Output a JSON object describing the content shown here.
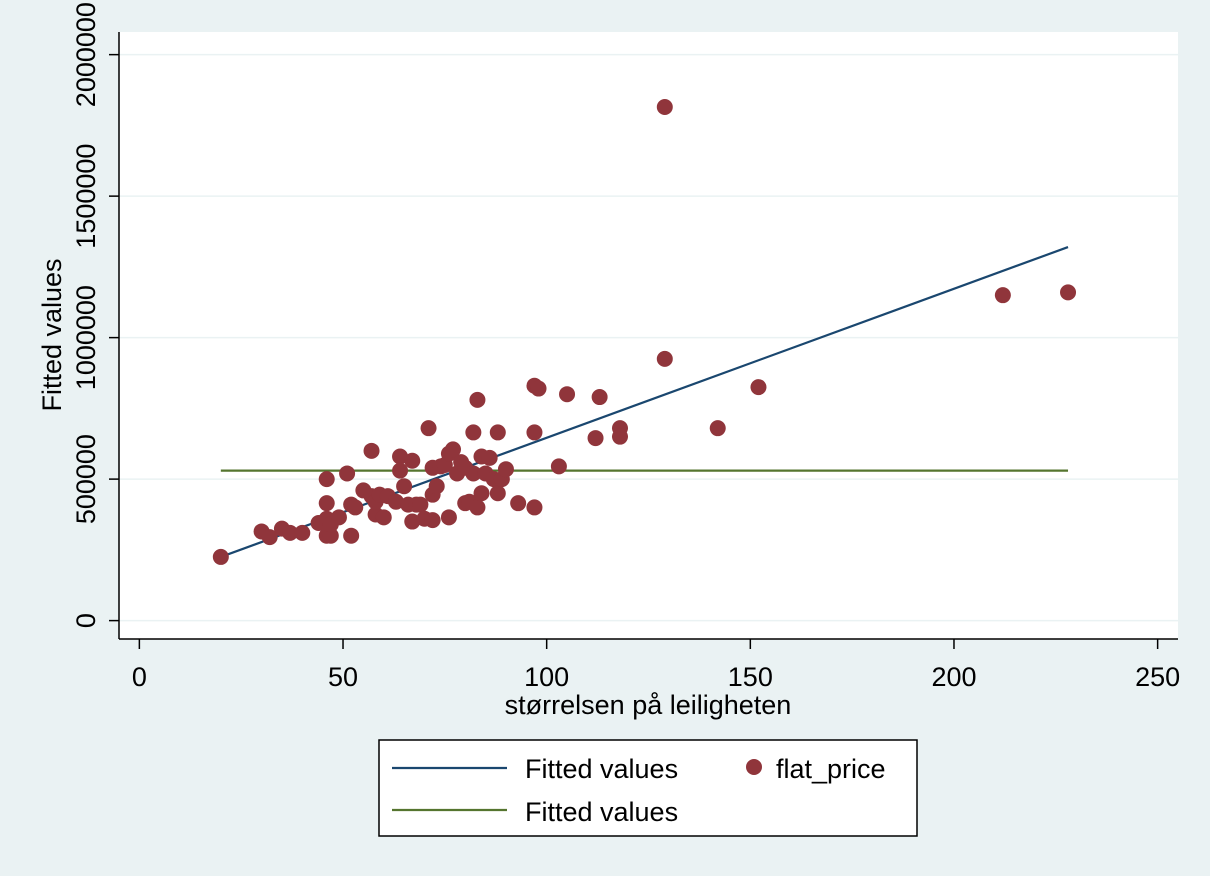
{
  "chart_data": {
    "type": "scatter",
    "title": "",
    "xlabel": "størrelsen på leiligheten",
    "ylabel": "Fitted values",
    "xlim": [
      -5,
      255
    ],
    "ylim": [
      -65000,
      2080000
    ],
    "x_ticks": [
      0,
      50,
      100,
      150,
      200,
      250
    ],
    "y_ticks": [
      0,
      500000,
      1000000,
      1500000,
      2000000
    ],
    "x_tick_labels": [
      "0",
      "50",
      "100",
      "150",
      "200",
      "250"
    ],
    "y_tick_labels": [
      "0",
      "500000",
      "1000000",
      "1500000",
      "2000000"
    ],
    "grid": "horizontal",
    "legend_position": "bottom",
    "colors": {
      "fit_line": "#1a476f",
      "mean_line": "#55752f",
      "points": "#90353b",
      "grid": "#eaf2f3",
      "plot_bg": "#ffffff",
      "page_bg": "#eaf2f3"
    },
    "series": [
      {
        "name": "Fitted values",
        "type": "line",
        "color": "#1a476f",
        "points": [
          [
            20,
            225000
          ],
          [
            228,
            1320000
          ]
        ]
      },
      {
        "name": "flat_price",
        "type": "scatter",
        "color": "#90353b",
        "points": [
          [
            20,
            225000
          ],
          [
            30,
            315000
          ],
          [
            32,
            295000
          ],
          [
            35,
            325000
          ],
          [
            37,
            310000
          ],
          [
            40,
            310000
          ],
          [
            44,
            345000
          ],
          [
            46,
            500000
          ],
          [
            46,
            415000
          ],
          [
            46,
            360000
          ],
          [
            46,
            300000
          ],
          [
            47,
            300000
          ],
          [
            47,
            340000
          ],
          [
            49,
            365000
          ],
          [
            51,
            520000
          ],
          [
            52,
            410000
          ],
          [
            52,
            300000
          ],
          [
            53,
            400000
          ],
          [
            55,
            460000
          ],
          [
            57,
            600000
          ],
          [
            57,
            440000
          ],
          [
            58,
            375000
          ],
          [
            58,
            420000
          ],
          [
            59,
            445000
          ],
          [
            60,
            365000
          ],
          [
            61,
            440000
          ],
          [
            63,
            420000
          ],
          [
            64,
            580000
          ],
          [
            64,
            530000
          ],
          [
            65,
            475000
          ],
          [
            66,
            410000
          ],
          [
            67,
            565000
          ],
          [
            67,
            350000
          ],
          [
            68,
            410000
          ],
          [
            69,
            410000
          ],
          [
            70,
            360000
          ],
          [
            71,
            680000
          ],
          [
            72,
            445000
          ],
          [
            72,
            355000
          ],
          [
            72,
            540000
          ],
          [
            73,
            475000
          ],
          [
            74,
            545000
          ],
          [
            75,
            550000
          ],
          [
            76,
            590000
          ],
          [
            76,
            365000
          ],
          [
            77,
            605000
          ],
          [
            78,
            520000
          ],
          [
            79,
            560000
          ],
          [
            80,
            540000
          ],
          [
            80,
            415000
          ],
          [
            81,
            420000
          ],
          [
            82,
            665000
          ],
          [
            82,
            520000
          ],
          [
            83,
            780000
          ],
          [
            83,
            400000
          ],
          [
            84,
            580000
          ],
          [
            84,
            450000
          ],
          [
            85,
            520000
          ],
          [
            86,
            575000
          ],
          [
            87,
            500000
          ],
          [
            88,
            665000
          ],
          [
            88,
            450000
          ],
          [
            89,
            500000
          ],
          [
            90,
            535000
          ],
          [
            93,
            415000
          ],
          [
            97,
            830000
          ],
          [
            97,
            665000
          ],
          [
            97,
            400000
          ],
          [
            98,
            820000
          ],
          [
            103,
            545000
          ],
          [
            105,
            800000
          ],
          [
            112,
            645000
          ],
          [
            113,
            790000
          ],
          [
            118,
            680000
          ],
          [
            118,
            650000
          ],
          [
            129,
            1815000
          ],
          [
            129,
            925000
          ],
          [
            142,
            680000
          ],
          [
            152,
            825000
          ],
          [
            212,
            1150000
          ],
          [
            228,
            1160000
          ]
        ]
      },
      {
        "name": "Fitted values",
        "type": "line",
        "color": "#55752f",
        "points": [
          [
            20,
            530000
          ],
          [
            228,
            530000
          ]
        ]
      }
    ]
  }
}
